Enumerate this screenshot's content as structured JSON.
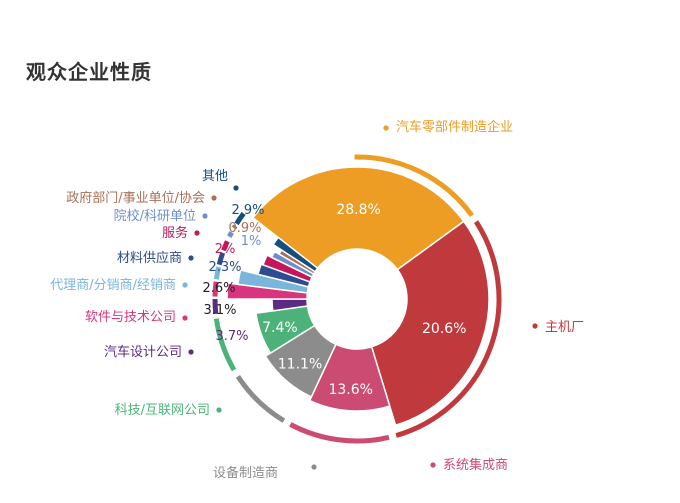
{
  "chart_data": {
    "type": "pie",
    "title": "观众企业性质",
    "series": [
      {
        "name": "汽车零部件制造企业",
        "value": 28.8,
        "label": "28.8%",
        "color": "#ED9C24"
      },
      {
        "name": "主机厂",
        "value": 20.6,
        "label": "20.6%",
        "color": "#C0393C"
      },
      {
        "name": "系统集成商",
        "value": 13.6,
        "label": "13.6%",
        "color": "#CB4B72"
      },
      {
        "name": "设备制造商",
        "value": 11.1,
        "label": "11.1%",
        "color": "#8C8C8C"
      },
      {
        "name": "科技/互联网公司",
        "value": 7.4,
        "label": "7.4%",
        "color": "#4DB27A"
      },
      {
        "name": "汽车设计公司",
        "value": 3.7,
        "label": "3.7%",
        "color": "#5B2C83"
      },
      {
        "name": "软件与技术公司",
        "value": 3.1,
        "label": "3.1%",
        "color": "#D9357E"
      },
      {
        "name": "代理商/分销商/经销商",
        "value": 2.6,
        "label": "2.6%",
        "color": "#7AB5DC"
      },
      {
        "name": "材料供应商",
        "value": 2.3,
        "label": "2.3%",
        "color": "#2E4C8F"
      },
      {
        "name": "服务",
        "value": 2.0,
        "label": "2%",
        "color": "#C2185B"
      },
      {
        "name": "院校/科研单位",
        "value": 1.0,
        "label": "1%",
        "color": "#6F8FC8"
      },
      {
        "name": "政府部门/事业单位/协会",
        "value": 0.9,
        "label": "0.9%",
        "color": "#A8705A"
      },
      {
        "name": "其他",
        "value": 2.9,
        "label": "2.9%",
        "color": "#13507E"
      }
    ]
  }
}
